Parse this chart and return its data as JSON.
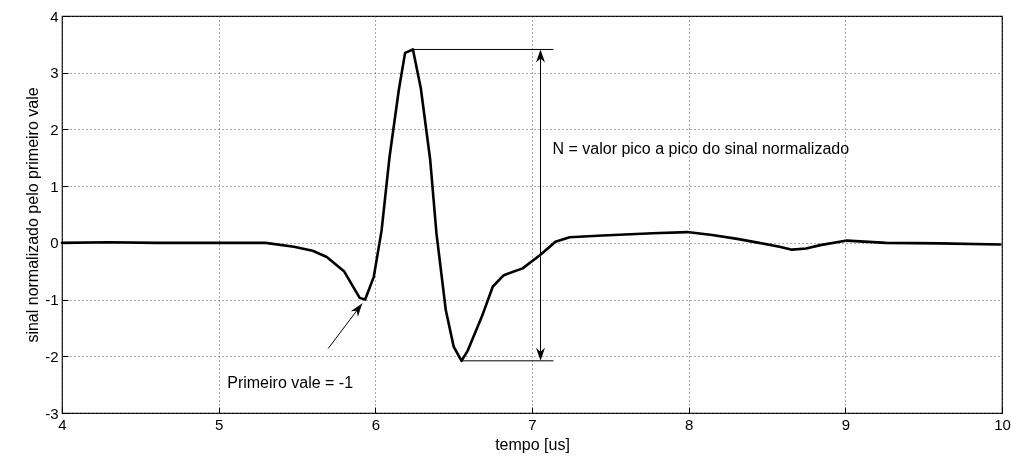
{
  "chart_data": {
    "type": "line",
    "xlabel": "tempo [us]",
    "ylabel": "sinal normalizado pelo primeiro vale",
    "xlim": [
      4,
      10
    ],
    "ylim": [
      -3,
      4
    ],
    "xticks": [
      4,
      5,
      6,
      7,
      8,
      9,
      10
    ],
    "yticks": [
      -3,
      -2,
      -1,
      0,
      1,
      2,
      3,
      4
    ],
    "grid": true,
    "marker": "none",
    "line_style": "solid",
    "series": [
      {
        "color": "#000000",
        "x": [
          4,
          4.3,
          4.6,
          5,
          5.3,
          5.48,
          5.6,
          5.69,
          5.8,
          5.9,
          5.935,
          5.99,
          6.04,
          6.09,
          6.15,
          6.19,
          6.24,
          6.29,
          6.35,
          6.39,
          6.45,
          6.5,
          6.55,
          6.59,
          6.68,
          6.75,
          6.82,
          6.94,
          7.05,
          7.15,
          7.24,
          7.45,
          7.77,
          7.99,
          8.15,
          8.31,
          8.45,
          8.58,
          8.66,
          8.75,
          8.84,
          9.01,
          9.26,
          9.6,
          9.99
        ],
        "values": [
          0,
          0.01,
          0,
          0,
          0,
          -0.07,
          -0.14,
          -0.25,
          -0.5,
          -0.97,
          -1,
          -0.6,
          0.22,
          1.5,
          2.7,
          3.35,
          3.41,
          2.73,
          1.47,
          0.17,
          -1.19,
          -1.83,
          -2.08,
          -1.9,
          -1.3,
          -0.77,
          -0.57,
          -0.45,
          -0.22,
          0.02,
          0.1,
          0.13,
          0.17,
          0.19,
          0.14,
          0.07,
          0,
          -0.07,
          -0.12,
          -0.1,
          -0.04,
          0.04,
          0,
          -0.01,
          -0.03
        ]
      }
    ],
    "annotations": [
      "Primeiro vale = -1",
      "N = valor pico a pico do sinal normalizado"
    ]
  }
}
